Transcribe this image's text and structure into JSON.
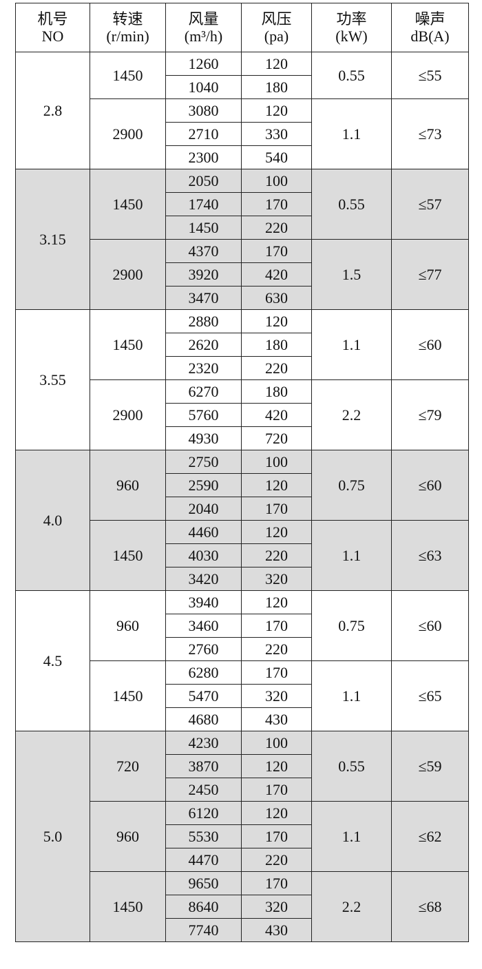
{
  "table": {
    "header": [
      [
        "机号",
        "NO"
      ],
      [
        "转速",
        "(r/min)"
      ],
      [
        "风量",
        "(m³/h)"
      ],
      [
        "风压",
        "(pa)"
      ],
      [
        "功率",
        "(kW)"
      ],
      [
        "噪声",
        "dB(A)"
      ]
    ],
    "groups": [
      {
        "no": "2.8",
        "speeds": [
          {
            "speed": "1450",
            "power": "0.55",
            "noise": "≤55",
            "rows": [
              [
                "1260",
                "120"
              ],
              [
                "1040",
                "180"
              ]
            ]
          },
          {
            "speed": "2900",
            "power": "1.1",
            "noise": "≤73",
            "rows": [
              [
                "3080",
                "120"
              ],
              [
                "2710",
                "330"
              ],
              [
                "2300",
                "540"
              ]
            ]
          }
        ]
      },
      {
        "no": "3.15",
        "speeds": [
          {
            "speed": "1450",
            "power": "0.55",
            "noise": "≤57",
            "rows": [
              [
                "2050",
                "100"
              ],
              [
                "1740",
                "170"
              ],
              [
                "1450",
                "220"
              ]
            ]
          },
          {
            "speed": "2900",
            "power": "1.5",
            "noise": "≤77",
            "rows": [
              [
                "4370",
                "170"
              ],
              [
                "3920",
                "420"
              ],
              [
                "3470",
                "630"
              ]
            ]
          }
        ]
      },
      {
        "no": "3.55",
        "speeds": [
          {
            "speed": "1450",
            "power": "1.1",
            "noise": "≤60",
            "rows": [
              [
                "2880",
                "120"
              ],
              [
                "2620",
                "180"
              ],
              [
                "2320",
                "220"
              ]
            ]
          },
          {
            "speed": "2900",
            "power": "2.2",
            "noise": "≤79",
            "rows": [
              [
                "6270",
                "180"
              ],
              [
                "5760",
                "420"
              ],
              [
                "4930",
                "720"
              ]
            ]
          }
        ]
      },
      {
        "no": "4.0",
        "speeds": [
          {
            "speed": "960",
            "power": "0.75",
            "noise": "≤60",
            "rows": [
              [
                "2750",
                "100"
              ],
              [
                "2590",
                "120"
              ],
              [
                "2040",
                "170"
              ]
            ]
          },
          {
            "speed": "1450",
            "power": "1.1",
            "noise": "≤63",
            "rows": [
              [
                "4460",
                "120"
              ],
              [
                "4030",
                "220"
              ],
              [
                "3420",
                "320"
              ]
            ]
          }
        ]
      },
      {
        "no": "4.5",
        "speeds": [
          {
            "speed": "960",
            "power": "0.75",
            "noise": "≤60",
            "rows": [
              [
                "3940",
                "120"
              ],
              [
                "3460",
                "170"
              ],
              [
                "2760",
                "220"
              ]
            ]
          },
          {
            "speed": "1450",
            "power": "1.1",
            "noise": "≤65",
            "rows": [
              [
                "6280",
                "170"
              ],
              [
                "5470",
                "320"
              ],
              [
                "4680",
                "430"
              ]
            ]
          }
        ]
      },
      {
        "no": "5.0",
        "speeds": [
          {
            "speed": "720",
            "power": "0.55",
            "noise": "≤59",
            "rows": [
              [
                "4230",
                "100"
              ],
              [
                "3870",
                "120"
              ],
              [
                "2450",
                "170"
              ]
            ]
          },
          {
            "speed": "960",
            "power": "1.1",
            "noise": "≤62",
            "rows": [
              [
                "6120",
                "120"
              ],
              [
                "5530",
                "170"
              ],
              [
                "4470",
                "220"
              ]
            ]
          },
          {
            "speed": "1450",
            "power": "2.2",
            "noise": "≤68",
            "rows": [
              [
                "9650",
                "170"
              ],
              [
                "8640",
                "320"
              ],
              [
                "7740",
                "430"
              ]
            ]
          }
        ]
      }
    ]
  }
}
